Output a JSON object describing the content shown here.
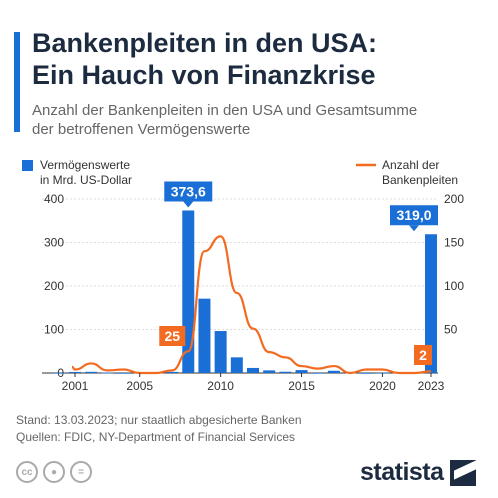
{
  "header": {
    "title_line1": "Bankenpleiten in den USA:",
    "title_line2": "Ein Hauch von Finanzkrise",
    "subtitle_line1": "Anzahl der Bankenpleiten in den USA und Gesamtsumme",
    "subtitle_line2": "der betroffenen Vermögenswerte"
  },
  "legend": {
    "bars_line1": "Vermögenswerte",
    "bars_line2": "in Mrd. US-Dollar",
    "line_line1": "Anzahl der",
    "line_line2": "Bankenpleiten"
  },
  "colors": {
    "bars": "#1a6fd6",
    "line": "#f26b21",
    "title": "#1c2b3f",
    "grid": "#dddddd"
  },
  "chart_data": {
    "type": "bar",
    "x_ticks": [
      "2001",
      "2005",
      "2010",
      "2015",
      "2020",
      "2023"
    ],
    "y_left_ticks": [
      "0",
      "100",
      "200",
      "300",
      "400"
    ],
    "y_right_ticks": [
      "50",
      "100",
      "150",
      "200"
    ],
    "ylim_left": [
      0,
      400
    ],
    "ylim_right": [
      0,
      200
    ],
    "years": [
      2000,
      2001,
      2002,
      2003,
      2004,
      2005,
      2006,
      2007,
      2008,
      2009,
      2010,
      2011,
      2012,
      2013,
      2014,
      2015,
      2016,
      2017,
      2018,
      2019,
      2020,
      2021,
      2022,
      2023
    ],
    "series": [
      {
        "axis": "left",
        "values": [
          0.4,
          2.4,
          2.7,
          1.1,
          0.2,
          0,
          0,
          2.6,
          373.6,
          170.9,
          96.5,
          36.0,
          11.6,
          6.0,
          2.9,
          6.7,
          0.3,
          5.1,
          0,
          0.2,
          0.5,
          0,
          0,
          319.0
        ]
      },
      {
        "axis": "right",
        "values": [
          7,
          4,
          11,
          3,
          4,
          0,
          0,
          3,
          25,
          140,
          157,
          92,
          51,
          24,
          18,
          8,
          5,
          8,
          0,
          4,
          4,
          0,
          0,
          2
        ]
      }
    ],
    "annotations": [
      {
        "year": 2008,
        "series": "bars",
        "label": "373,6"
      },
      {
        "year": 2023,
        "series": "bars",
        "label": "319,0"
      },
      {
        "year": 2008,
        "series": "line",
        "label": "25"
      },
      {
        "year": 2023,
        "series": "line",
        "label": "2"
      }
    ]
  },
  "footer": {
    "note": "Stand: 13.03.2023; nur staatlich abgesicherte Banken",
    "sources": "Quellen: FDIC, NY-Department of Financial Services",
    "license_icons": [
      "cc-icon",
      "attribution-icon",
      "no-derivatives-icon"
    ],
    "brand": "statista"
  }
}
